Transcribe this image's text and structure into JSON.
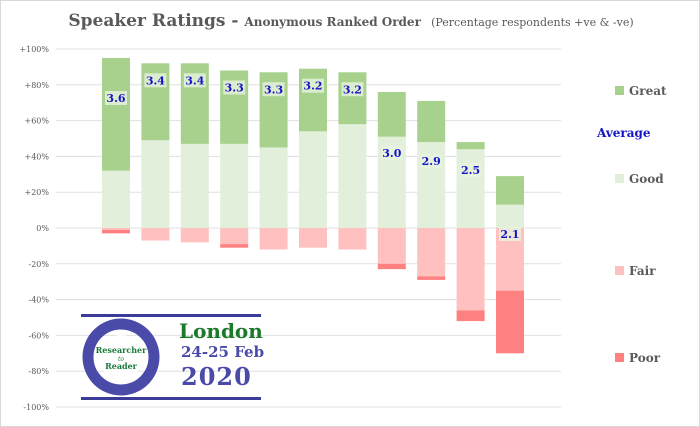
{
  "chart_data": {
    "type": "bar",
    "stacked": true,
    "title": "Speaker Ratings",
    "subtitle": "Anonymous Ranked Order",
    "subtitle2": "(Percentage respondents +ve & -ve)",
    "ylim": [
      -100,
      100
    ],
    "yticks": [
      "+100%",
      "+80%",
      "+60%",
      "+40%",
      "+20%",
      "0%",
      "-20%",
      "-40%",
      "-60%",
      "-80%",
      "-100%"
    ],
    "grid": true,
    "legend_placement": "right",
    "series": [
      {
        "name": "Great",
        "color": "#a9d18e",
        "values": [
          63,
          43,
          45,
          41,
          42,
          35,
          29,
          25,
          23,
          4,
          16
        ]
      },
      {
        "name": "Good",
        "color": "#e2efda",
        "values": [
          32,
          49,
          47,
          47,
          45,
          54,
          58,
          51,
          48,
          44,
          13
        ]
      },
      {
        "name": "Fair",
        "color": "#ffc0c0",
        "values": [
          -1,
          -7,
          -8,
          -9,
          -12,
          -11,
          -12,
          -20,
          -27,
          -46,
          -35
        ]
      },
      {
        "name": "Poor",
        "color": "#ff8080",
        "values": [
          -2,
          0,
          0,
          -2,
          0,
          0,
          0,
          -3,
          -2,
          -6,
          -35
        ]
      }
    ],
    "averages": [
      "3.6",
      "3.4",
      "3.4",
      "3.3",
      "3.3",
      "3.2",
      "3.2",
      "3.0",
      "2.9",
      "2.5",
      "2.1"
    ],
    "average_label": "Average",
    "average_color": "#1515c8"
  },
  "logo": {
    "ring_text": "Researcher to Reader",
    "city": "London",
    "dates": "24-25 Feb",
    "year": "2020"
  }
}
